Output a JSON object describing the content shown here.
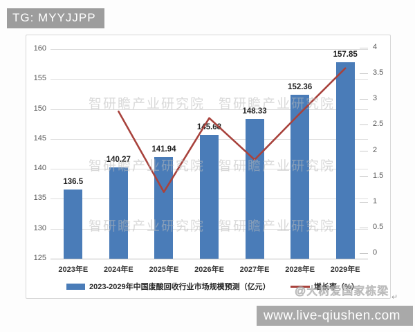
{
  "page": {
    "tag": "TG: MYYJJPP",
    "footer_url": "www.live-qiushen.com"
  },
  "watermarks": {
    "tiled": "智研瞻产业研究院",
    "corner": "@大树爱国家栋梁",
    "corner_suffix": "↵"
  },
  "chart_data": {
    "type": "bar",
    "title": "",
    "categories": [
      "2023年E",
      "2024年E",
      "2025年E",
      "2026年E",
      "2027年E",
      "2028年E",
      "2029年E"
    ],
    "series": [
      {
        "name": "2023-2029年中国废酸回收行业市场规模预测（亿元）",
        "type": "bar",
        "axis": "left",
        "color": "#4a7cb8",
        "values": [
          136.5,
          140.27,
          141.94,
          145.68,
          148.33,
          152.36,
          157.85
        ]
      },
      {
        "name": "增长率（%）",
        "type": "line",
        "axis": "right",
        "color": "#a8423c",
        "values": [
          null,
          2.76,
          1.19,
          2.63,
          1.82,
          2.72,
          3.6
        ]
      }
    ],
    "bar_labels": [
      "136.5",
      "140.27",
      "141.94",
      "145.68",
      "148.33",
      "152.36",
      "157.85"
    ],
    "left_axis": {
      "min": 125,
      "max": 160,
      "step": 5,
      "ticks": [
        160,
        155,
        150,
        145,
        140,
        135,
        130,
        125
      ]
    },
    "right_axis": {
      "min": 0,
      "max": 4,
      "step": 0.5,
      "ticks": [
        4,
        3.5,
        3,
        2.5,
        2,
        1.5,
        1,
        0.5,
        0
      ]
    },
    "grid": true,
    "legend_position": "bottom"
  }
}
